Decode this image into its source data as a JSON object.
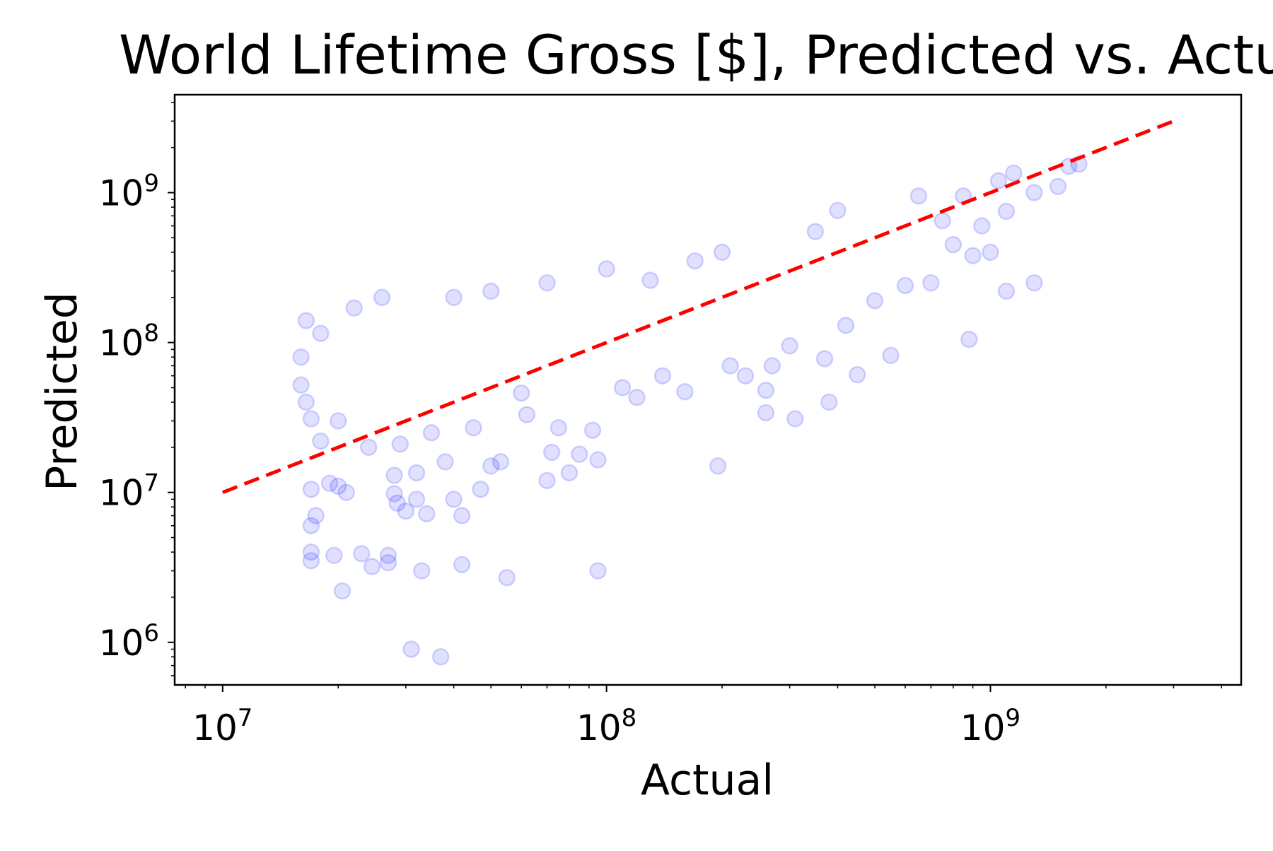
{
  "chart_data": {
    "type": "scatter",
    "title": "World Lifetime Gross [$], Predicted vs. Actual",
    "xlabel": "Actual",
    "ylabel": "Predicted",
    "xscale": "log",
    "yscale": "log",
    "xlim": [
      7500000.0,
      4500000000.0
    ],
    "ylim": [
      520000.0,
      4500000000.0
    ],
    "x_ticks": [
      {
        "value": 10000000.0,
        "base": "10",
        "exp": "7"
      },
      {
        "value": 100000000.0,
        "base": "10",
        "exp": "8"
      },
      {
        "value": 1000000000.0,
        "base": "10",
        "exp": "9"
      }
    ],
    "y_ticks": [
      {
        "value": 1000000.0,
        "base": "10",
        "exp": "6"
      },
      {
        "value": 10000000.0,
        "base": "10",
        "exp": "7"
      },
      {
        "value": 100000000.0,
        "base": "10",
        "exp": "8"
      },
      {
        "value": 1000000000.0,
        "base": "10",
        "exp": "9"
      }
    ],
    "grid": false,
    "legend": "none",
    "series": [
      {
        "kind": "points",
        "color": "#0000ff",
        "alpha": 0.12,
        "marker": "circle",
        "points": [
          [
            16000000.0,
            80000000.0
          ],
          [
            16500000.0,
            140000000.0
          ],
          [
            17000000.0,
            10500000.0
          ],
          [
            17500000.0,
            7000000.0
          ],
          [
            17000000.0,
            3500000.0
          ],
          [
            17000000.0,
            4000000.0
          ],
          [
            17000000.0,
            6000000.0
          ],
          [
            16000000.0,
            52000000.0
          ],
          [
            16500000.0,
            40000000.0
          ],
          [
            17000000.0,
            31000000.0
          ],
          [
            18000000.0,
            115000000.0
          ],
          [
            18000000.0,
            22000000.0
          ],
          [
            19000000.0,
            11500000.0
          ],
          [
            19500000.0,
            3800000.0
          ],
          [
            20500000.0,
            2200000.0
          ],
          [
            21000000.0,
            10000000.0
          ],
          [
            20000000.0,
            11000000.0
          ],
          [
            20000000.0,
            30000000.0
          ],
          [
            22000000.0,
            170000000.0
          ],
          [
            23000000.0,
            3900000.0
          ],
          [
            24000000.0,
            20000000.0
          ],
          [
            24500000.0,
            3200000.0
          ],
          [
            26000000.0,
            200000000.0
          ],
          [
            27000000.0,
            3800000.0
          ],
          [
            27000000.0,
            3400000.0
          ],
          [
            28000000.0,
            9800000.0
          ],
          [
            28000000.0,
            13000000.0
          ],
          [
            28500000.0,
            8500000.0
          ],
          [
            29000000.0,
            21000000.0
          ],
          [
            30000000.0,
            7500000.0
          ],
          [
            31000000.0,
            900000.0
          ],
          [
            32000000.0,
            13500000.0
          ],
          [
            32000000.0,
            9000000.0
          ],
          [
            33000000.0,
            3000000.0
          ],
          [
            34000000.0,
            7200000.0
          ],
          [
            35000000.0,
            25000000.0
          ],
          [
            37000000.0,
            800000.0
          ],
          [
            38000000.0,
            16000000.0
          ],
          [
            40000000.0,
            200000000.0
          ],
          [
            40000000.0,
            9000000.0
          ],
          [
            42000000.0,
            3300000.0
          ],
          [
            42000000.0,
            7000000.0
          ],
          [
            45000000.0,
            27000000.0
          ],
          [
            47000000.0,
            10500000.0
          ],
          [
            50000000.0,
            15000000.0
          ],
          [
            50000000.0,
            220000000.0
          ],
          [
            53000000.0,
            16000000.0
          ],
          [
            55000000.0,
            2700000.0
          ],
          [
            60000000.0,
            46000000.0
          ],
          [
            62000000.0,
            33000000.0
          ],
          [
            70000000.0,
            250000000.0
          ],
          [
            70000000.0,
            12000000.0
          ],
          [
            72000000.0,
            18500000.0
          ],
          [
            75000000.0,
            27000000.0
          ],
          [
            80000000.0,
            13500000.0
          ],
          [
            85000000.0,
            18000000.0
          ],
          [
            92000000.0,
            26000000.0
          ],
          [
            95000000.0,
            16500000.0
          ],
          [
            95000000.0,
            3000000.0
          ],
          [
            100000000.0,
            310000000.0
          ],
          [
            110000000.0,
            50000000.0
          ],
          [
            120000000.0,
            43000000.0
          ],
          [
            130000000.0,
            260000000.0
          ],
          [
            140000000.0,
            60000000.0
          ],
          [
            160000000.0,
            47000000.0
          ],
          [
            170000000.0,
            350000000.0
          ],
          [
            195000000.0,
            15000000.0
          ],
          [
            200000000.0,
            400000000.0
          ],
          [
            210000000.0,
            70000000.0
          ],
          [
            230000000.0,
            60000000.0
          ],
          [
            260000000.0,
            34000000.0
          ],
          [
            260000000.0,
            48000000.0
          ],
          [
            270000000.0,
            70000000.0
          ],
          [
            300000000.0,
            95000000.0
          ],
          [
            310000000.0,
            31000000.0
          ],
          [
            350000000.0,
            550000000.0
          ],
          [
            370000000.0,
            78000000.0
          ],
          [
            380000000.0,
            40000000.0
          ],
          [
            400000000.0,
            760000000.0
          ],
          [
            420000000.0,
            130000000.0
          ],
          [
            450000000.0,
            61000000.0
          ],
          [
            500000000.0,
            190000000.0
          ],
          [
            550000000.0,
            82000000.0
          ],
          [
            600000000.0,
            240000000.0
          ],
          [
            650000000.0,
            950000000.0
          ],
          [
            700000000.0,
            250000000.0
          ],
          [
            750000000.0,
            650000000.0
          ],
          [
            800000000.0,
            450000000.0
          ],
          [
            850000000.0,
            950000000.0
          ],
          [
            880000000.0,
            105000000.0
          ],
          [
            900000000.0,
            380000000.0
          ],
          [
            950000000.0,
            600000000.0
          ],
          [
            1000000000.0,
            400000000.0
          ],
          [
            1050000000.0,
            1200000000.0
          ],
          [
            1100000000.0,
            220000000.0
          ],
          [
            1100000000.0,
            750000000.0
          ],
          [
            1150000000.0,
            1350000000.0
          ],
          [
            1300000000.0,
            250000000.0
          ],
          [
            1300000000.0,
            1000000000.0
          ],
          [
            1500000000.0,
            1100000000.0
          ],
          [
            1600000000.0,
            1500000000.0
          ],
          [
            1700000000.0,
            1550000000.0
          ]
        ]
      },
      {
        "kind": "line",
        "color": "#ff0000",
        "style": "dashed",
        "points": [
          [
            10000000.0,
            10000000.0
          ],
          [
            3000000000.0,
            3000000000.0
          ]
        ]
      }
    ]
  }
}
